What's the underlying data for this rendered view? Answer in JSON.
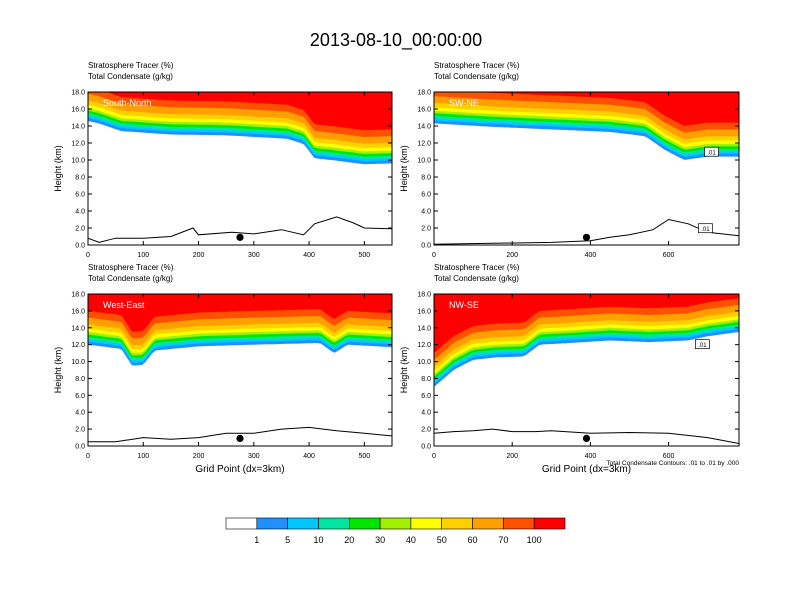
{
  "figure_title": "2013-08-10_00:00:00",
  "chart_data": [
    {
      "type": "heatmap",
      "panel_label": "South-North",
      "title_lines": [
        "Stratosphere Tracer   (%)",
        "Total Condensate   (g/kg)"
      ],
      "xlabel": "",
      "ylabel": "Height (km)",
      "xlim": [
        0,
        550
      ],
      "ylim": [
        0,
        18
      ],
      "xticks": [
        0,
        100,
        200,
        300,
        400,
        500
      ],
      "yticks": [
        0,
        2,
        4,
        6,
        8,
        10,
        12,
        14,
        16,
        18
      ],
      "marker_x": 275,
      "tracer_base_km": [
        [
          0,
          14.6
        ],
        [
          20,
          14.3
        ],
        [
          60,
          13.4
        ],
        [
          150,
          13.0
        ],
        [
          250,
          12.9
        ],
        [
          360,
          12.5
        ],
        [
          390,
          11.9
        ],
        [
          410,
          10.2
        ],
        [
          440,
          10.0
        ],
        [
          500,
          9.5
        ],
        [
          550,
          9.6
        ]
      ],
      "terrain_km": [
        [
          0,
          0.8
        ],
        [
          20,
          0.3
        ],
        [
          50,
          0.8
        ],
        [
          100,
          0.8
        ],
        [
          150,
          1.0
        ],
        [
          190,
          2.0
        ],
        [
          200,
          1.2
        ],
        [
          260,
          1.5
        ],
        [
          300,
          1.3
        ],
        [
          350,
          1.8
        ],
        [
          390,
          1.2
        ],
        [
          410,
          2.5
        ],
        [
          450,
          3.3
        ],
        [
          480,
          2.6
        ],
        [
          500,
          2.0
        ],
        [
          550,
          1.9
        ]
      ]
    },
    {
      "type": "heatmap",
      "panel_label": "SW-NE",
      "title_lines": [
        "Stratosphere Tracer   (%)",
        "Total Condensate   (g/kg)"
      ],
      "xlabel": "",
      "ylabel": "Height (km)",
      "xlim": [
        0,
        780
      ],
      "ylim": [
        0,
        18
      ],
      "xticks": [
        0,
        200,
        400,
        600
      ],
      "yticks": [
        0,
        2,
        4,
        6,
        8,
        10,
        12,
        14,
        16,
        18
      ],
      "marker_x": 390,
      "contour_labels": [
        ".01",
        ".01"
      ],
      "tracer_base_km": [
        [
          0,
          14.3
        ],
        [
          150,
          13.9
        ],
        [
          300,
          13.6
        ],
        [
          450,
          13.3
        ],
        [
          540,
          12.8
        ],
        [
          590,
          11.2
        ],
        [
          640,
          10.0
        ],
        [
          670,
          10.2
        ],
        [
          700,
          10.4
        ],
        [
          780,
          10.4
        ]
      ],
      "terrain_km": [
        [
          0,
          0.1
        ],
        [
          150,
          0.2
        ],
        [
          300,
          0.3
        ],
        [
          400,
          0.5
        ],
        [
          450,
          0.9
        ],
        [
          500,
          1.2
        ],
        [
          560,
          1.8
        ],
        [
          600,
          3.0
        ],
        [
          650,
          2.5
        ],
        [
          700,
          1.5
        ],
        [
          780,
          1.1
        ]
      ]
    },
    {
      "type": "heatmap",
      "panel_label": "West-East",
      "title_lines": [
        "Stratosphere Tracer   (%)",
        "Total Condensate   (g/kg)"
      ],
      "xlabel": "Grid Point (dx=3km)",
      "ylabel": "Height (km)",
      "xlim": [
        0,
        550
      ],
      "ylim": [
        0,
        18
      ],
      "xticks": [
        0,
        100,
        200,
        300,
        400,
        500
      ],
      "yticks": [
        0,
        2,
        4,
        6,
        8,
        10,
        12,
        14,
        16,
        18
      ],
      "marker_x": 275,
      "tracer_base_km": [
        [
          0,
          12.0
        ],
        [
          60,
          11.5
        ],
        [
          80,
          9.5
        ],
        [
          100,
          9.6
        ],
        [
          120,
          11.3
        ],
        [
          200,
          11.8
        ],
        [
          300,
          12.0
        ],
        [
          420,
          12.2
        ],
        [
          445,
          11.0
        ],
        [
          470,
          12.0
        ],
        [
          550,
          11.7
        ]
      ],
      "terrain_km": [
        [
          0,
          0.5
        ],
        [
          50,
          0.5
        ],
        [
          100,
          1.0
        ],
        [
          150,
          0.8
        ],
        [
          200,
          1.0
        ],
        [
          250,
          1.5
        ],
        [
          300,
          1.5
        ],
        [
          350,
          2.0
        ],
        [
          400,
          2.2
        ],
        [
          450,
          1.8
        ],
        [
          500,
          1.5
        ],
        [
          550,
          1.2
        ]
      ]
    },
    {
      "type": "heatmap",
      "panel_label": "NW-SE",
      "title_lines": [
        "Stratosphere Tracer   (%)",
        "Total Condensate   (g/kg)"
      ],
      "xlabel": "Grid Point (dx=3km)",
      "ylabel": "Height (km)",
      "xlim": [
        0,
        780
      ],
      "ylim": [
        0,
        18
      ],
      "xticks": [
        0,
        200,
        400,
        600
      ],
      "yticks": [
        0,
        2,
        4,
        6,
        8,
        10,
        12,
        14,
        16,
        18
      ],
      "marker_x": 390,
      "contour_labels": [
        ".01"
      ],
      "footnote": "Total Condensate Contours: .01 to .01 by .000",
      "tracer_base_km": [
        [
          0,
          7.0
        ],
        [
          50,
          9.0
        ],
        [
          100,
          10.2
        ],
        [
          160,
          10.5
        ],
        [
          230,
          10.6
        ],
        [
          270,
          12.0
        ],
        [
          350,
          12.2
        ],
        [
          450,
          12.5
        ],
        [
          550,
          12.3
        ],
        [
          650,
          12.5
        ],
        [
          700,
          13.0
        ],
        [
          780,
          13.5
        ]
      ],
      "terrain_km": [
        [
          0,
          1.5
        ],
        [
          50,
          1.7
        ],
        [
          100,
          1.8
        ],
        [
          150,
          2.0
        ],
        [
          200,
          1.7
        ],
        [
          260,
          1.7
        ],
        [
          300,
          1.8
        ],
        [
          400,
          1.5
        ],
        [
          500,
          1.6
        ],
        [
          600,
          1.5
        ],
        [
          700,
          1.0
        ],
        [
          780,
          0.3
        ]
      ]
    }
  ],
  "colorbar": {
    "levels": [
      "1",
      "5",
      "10",
      "20",
      "30",
      "40",
      "50",
      "60",
      "70",
      "100"
    ],
    "colors": [
      "#ffffff",
      "#1e90ff",
      "#00c8ff",
      "#00e6a0",
      "#00e600",
      "#a0f000",
      "#ffff00",
      "#ffd000",
      "#ffa000",
      "#ff5000",
      "#ff0000"
    ]
  }
}
